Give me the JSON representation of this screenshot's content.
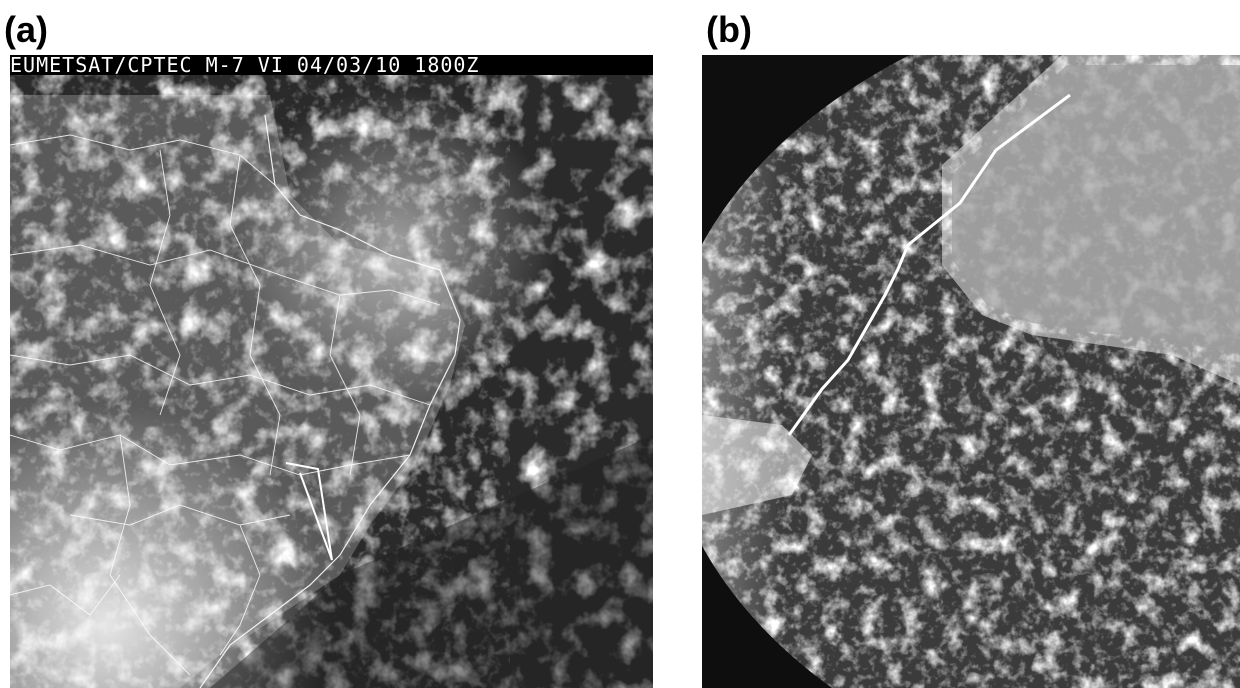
{
  "panels": [
    {
      "id": "a",
      "label": "(a)",
      "header_text": "EUMETSAT/CPTEC M-7 VI 04/03/10 1800Z"
    },
    {
      "id": "b",
      "label": "(b)"
    }
  ],
  "colors": {
    "background": "#ffffff",
    "track_line": "#ffffff",
    "map_border": "#ffffff",
    "header_bg": "#000000"
  }
}
